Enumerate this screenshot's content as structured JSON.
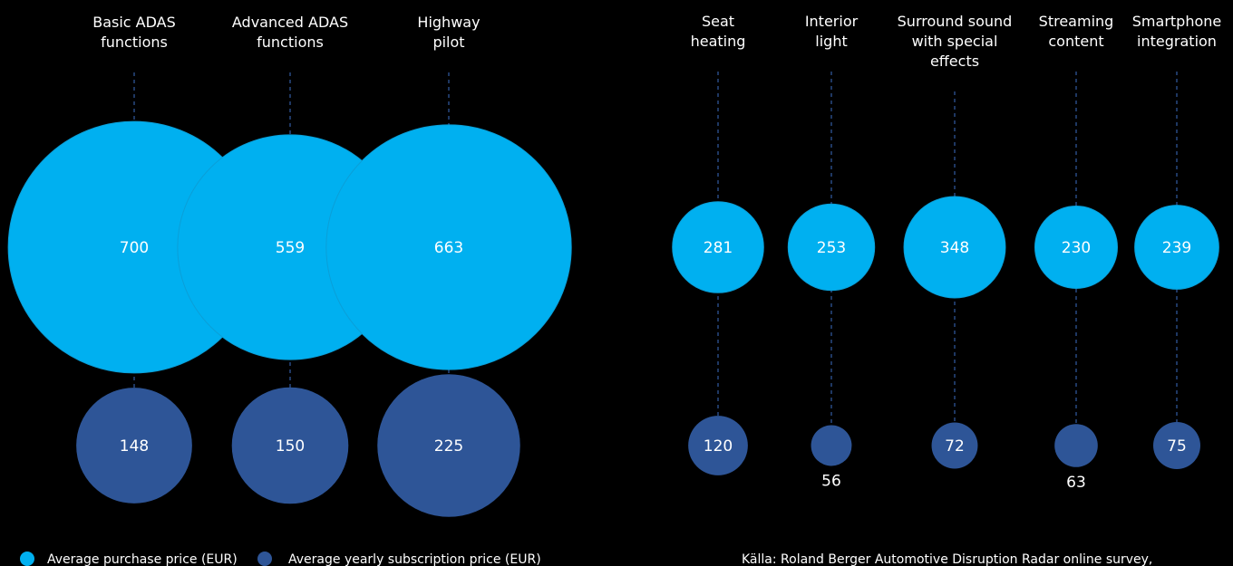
{
  "colors": {
    "purchase": "#00b0f0",
    "subscription": "#2e5597",
    "dash": "#2e5597",
    "background": "#000000",
    "text": "#ffffff"
  },
  "legend": [
    {
      "label": "Average purchase price (EUR)",
      "color": "#00b0f0"
    },
    {
      "label": "Average yearly subscription price (EUR)",
      "color": "#2e5597"
    }
  ],
  "source": "Källa: Roland Berger Automotive Disruption Radar online survey,",
  "chart_data": [
    {
      "type": "bubble",
      "categories": [
        [
          "Basic ADAS",
          "functions"
        ],
        [
          "Advanced ADAS",
          "functions"
        ],
        [
          "Highway",
          "pilot"
        ]
      ],
      "series": [
        {
          "name": "Average purchase price (EUR)",
          "values": [
            700,
            559,
            663
          ]
        },
        {
          "name": "Average yearly subscription price (EUR)",
          "values": [
            148,
            150,
            225
          ]
        }
      ]
    },
    {
      "type": "bubble",
      "categories": [
        [
          "Seat",
          "heating"
        ],
        [
          "Interior",
          "light"
        ],
        [
          "Surround sound",
          "with special",
          "effects"
        ],
        [
          "Streaming",
          "content"
        ],
        [
          "Smartphone",
          "integration"
        ]
      ],
      "series": [
        {
          "name": "Average purchase price (EUR)",
          "values": [
            281,
            253,
            348,
            230,
            239
          ]
        },
        {
          "name": "Average yearly subscription price (EUR)",
          "values": [
            120,
            56,
            72,
            63,
            75
          ]
        }
      ]
    }
  ]
}
